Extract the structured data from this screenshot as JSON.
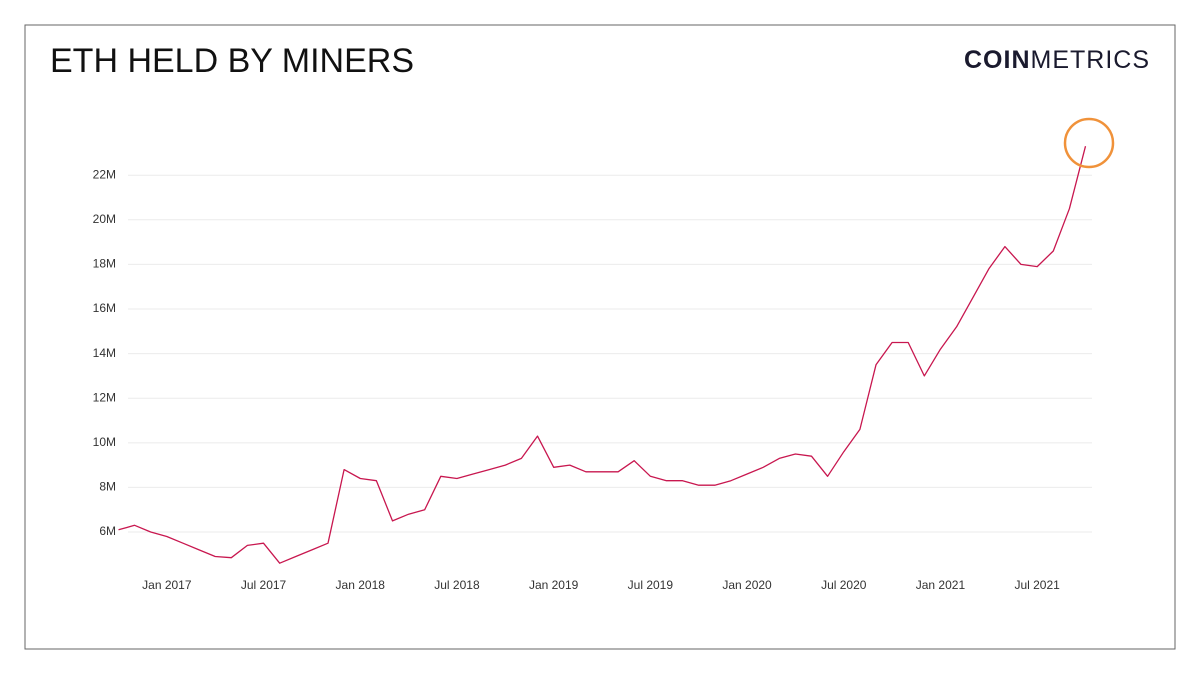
{
  "chart_data": {
    "type": "line",
    "title": "ETH HELD BY MINERS",
    "logo": {
      "bold": "COIN",
      "light": "METRICS"
    },
    "x": [
      "2016-10",
      "2016-11",
      "2016-12",
      "2017-01",
      "2017-02",
      "2017-03",
      "2017-04",
      "2017-05",
      "2017-06",
      "2017-07",
      "2017-08",
      "2017-09",
      "2017-10",
      "2017-11",
      "2017-12",
      "2018-01",
      "2018-02",
      "2018-03",
      "2018-04",
      "2018-05",
      "2018-06",
      "2018-07",
      "2018-08",
      "2018-09",
      "2018-10",
      "2018-11",
      "2018-12",
      "2019-01",
      "2019-02",
      "2019-03",
      "2019-04",
      "2019-05",
      "2019-06",
      "2019-07",
      "2019-08",
      "2019-09",
      "2019-10",
      "2019-11",
      "2019-12",
      "2020-01",
      "2020-02",
      "2020-03",
      "2020-04",
      "2020-05",
      "2020-06",
      "2020-07",
      "2020-08",
      "2020-09",
      "2020-10",
      "2020-11",
      "2020-12",
      "2021-01",
      "2021-02",
      "2021-03",
      "2021-04",
      "2021-05",
      "2021-06",
      "2021-07",
      "2021-08",
      "2021-09",
      "2021-10"
    ],
    "series": [
      {
        "color": "#c8174f",
        "values": [
          6100000,
          6300000,
          6000000,
          5800000,
          5500000,
          5200000,
          4900000,
          4850000,
          5400000,
          5500000,
          4600000,
          4900000,
          5200000,
          5500000,
          8800000,
          8400000,
          8300000,
          6500000,
          6800000,
          7000000,
          8500000,
          8400000,
          8600000,
          8800000,
          9000000,
          9300000,
          10300000,
          8900000,
          9000000,
          8700000,
          8700000,
          8700000,
          9200000,
          8500000,
          8300000,
          8300000,
          8100000,
          8100000,
          8300000,
          8600000,
          8900000,
          9300000,
          9500000,
          9400000,
          8500000,
          9600000,
          10600000,
          13500000,
          14500000,
          14500000,
          13000000,
          14200000,
          15200000,
          16500000,
          17800000,
          18800000,
          18000000,
          17900000,
          18600000,
          20500000,
          23300000
        ]
      }
    ],
    "xlim": [
      "2016-10",
      "2021-10"
    ],
    "xticks": [
      {
        "value": "2017-01",
        "label": "Jan 2017"
      },
      {
        "value": "2017-07",
        "label": "Jul 2017"
      },
      {
        "value": "2018-01",
        "label": "Jan 2018"
      },
      {
        "value": "2018-07",
        "label": "Jul 2018"
      },
      {
        "value": "2019-01",
        "label": "Jan 2019"
      },
      {
        "value": "2019-07",
        "label": "Jul 2019"
      },
      {
        "value": "2020-01",
        "label": "Jan 2020"
      },
      {
        "value": "2020-07",
        "label": "Jul 2020"
      },
      {
        "value": "2021-01",
        "label": "Jan 2021"
      },
      {
        "value": "2021-07",
        "label": "Jul 2021"
      }
    ],
    "ylim": [
      4400000,
      24000000
    ],
    "yticks": [
      {
        "value": 6000000,
        "label": "6M"
      },
      {
        "value": 8000000,
        "label": "8M"
      },
      {
        "value": 10000000,
        "label": "10M"
      },
      {
        "value": 12000000,
        "label": "12M"
      },
      {
        "value": 14000000,
        "label": "14M"
      },
      {
        "value": 16000000,
        "label": "16M"
      },
      {
        "value": 18000000,
        "label": "18M"
      },
      {
        "value": 20000000,
        "label": "20M"
      },
      {
        "value": 22000000,
        "label": "22M"
      }
    ],
    "grid": true
  }
}
